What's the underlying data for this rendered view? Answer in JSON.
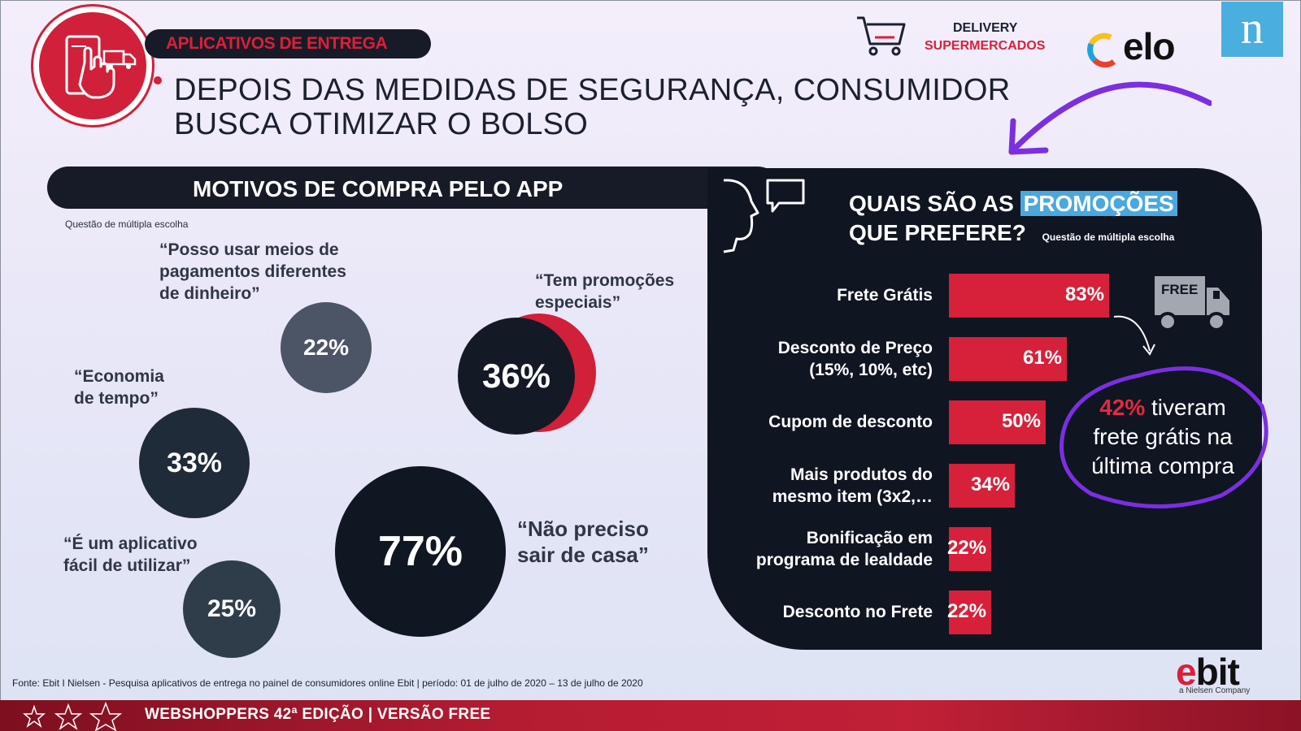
{
  "header": {
    "tag": "APLICATIVOS DE ENTREGA",
    "headline_line1": "DEPOIS DAS MEDIDAS DE SEGURANÇA, CONSUMIDOR",
    "headline_line2": "BUSCA OTIMIZAR O BOLSO",
    "delivery_line1": "DELIVERY",
    "delivery_line2": "SUPERMERCADOS",
    "elo_logo": "elo",
    "nielsen_logo": "n",
    "icons": [
      "phone-tap-icon",
      "truck-icon",
      "shopping-cart-icon",
      "elo-logo",
      "nielsen-logo"
    ]
  },
  "left_section": {
    "title": "MOTIVOS DE COMPRA PELO APP",
    "note": "Questão de múltipla escolha"
  },
  "right_section": {
    "title_part1": "QUAIS SÃO AS",
    "title_highlight": "PROMOÇÕES",
    "title_part2": "QUE PREFERE?",
    "note": "Questão de múltipla escolha",
    "free_badge": "FREE",
    "callout_pct": "42%",
    "callout_line1": " tiveram",
    "callout_line2": "frete grátis na",
    "callout_line3": "última compra"
  },
  "chart_data": [
    {
      "type": "bubble",
      "title": "MOTIVOS DE COMPRA PELO APP",
      "items": [
        {
          "label": "“Não preciso sair de casa”",
          "value": 77,
          "value_label": "77%"
        },
        {
          "label": "“Tem promoções especiais”",
          "value": 36,
          "value_label": "36%"
        },
        {
          "label": "“Economia de tempo”",
          "value": 33,
          "value_label": "33%"
        },
        {
          "label": "“É um aplicativo fácil de utilizar”",
          "value": 25,
          "value_label": "25%"
        },
        {
          "label": "“Posso usar meios de pagamentos diferentes de dinheiro”",
          "value": 22,
          "value_label": "22%"
        }
      ],
      "quote_lines": {
        "sair": [
          "“Não preciso",
          "sair de casa”"
        ],
        "promo": [
          "“Tem promoções",
          "especiais”"
        ],
        "tempo": [
          "“Economia",
          "de tempo”"
        ],
        "facil": [
          "“É um aplicativo",
          "fácil de utilizar”"
        ],
        "pagto": [
          "“Posso usar meios de",
          "pagamentos diferentes",
          "de dinheiro”"
        ]
      }
    },
    {
      "type": "bar",
      "orientation": "horizontal",
      "title": "QUAIS SÃO AS PROMOÇÕES QUE PREFERE?",
      "categories": [
        "Frete Grátis",
        "Desconto de Preço (15%, 10%, etc)",
        "Cupom de desconto",
        "Mais produtos do mesmo item (3x2,…",
        "Bonificação em programa de lealdade",
        "Desconto no Frete"
      ],
      "category_lines": [
        [
          "Frete Grátis"
        ],
        [
          "Desconto de Preço",
          "(15%, 10%, etc)"
        ],
        [
          "Cupom de desconto"
        ],
        [
          "Mais produtos do",
          "mesmo item (3x2,…"
        ],
        [
          "Bonificação em",
          "programa de lealdade"
        ],
        [
          "Desconto no Frete"
        ]
      ],
      "values": [
        83,
        61,
        50,
        34,
        22,
        22
      ],
      "value_labels": [
        "83%",
        "61%",
        "50%",
        "34%",
        "22%",
        "22%"
      ],
      "color": "#d7203a"
    }
  ],
  "footer": {
    "source": "Fonte: Ebit I Nielsen - Pesquisa aplicativos de entrega no painel de consumidores online Ebit |  período: 01 de julho de 2020 – 13 de julho de 2020",
    "ebit_e": "e",
    "ebit_rest": "bit",
    "ebit_sub": "a Nielsen Company",
    "band_text": "WEBSHOPPERS 42ª EDIÇÃO |  VERSÃO FREE"
  }
}
